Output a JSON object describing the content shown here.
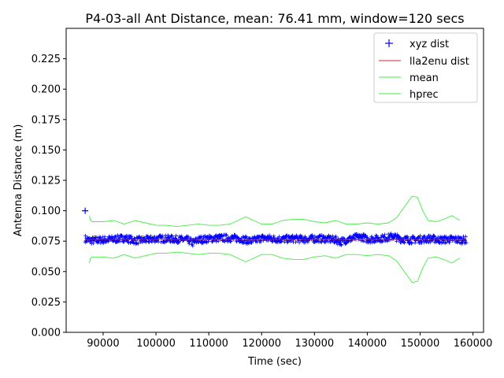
{
  "chart_data": {
    "type": "line",
    "title": "P4-03-all Ant Distance, mean: 76.41 mm, window=120 secs",
    "xlabel": "Time (sec)",
    "ylabel": "Antenna Distance (m)",
    "xlim": [
      83000,
      162000
    ],
    "ylim": [
      0.0,
      0.25
    ],
    "xticks": [
      90000,
      100000,
      110000,
      120000,
      130000,
      140000,
      150000,
      160000
    ],
    "xtick_labels": [
      "90000",
      "100000",
      "110000",
      "120000",
      "130000",
      "140000",
      "150000",
      "160000"
    ],
    "yticks": [
      0.0,
      0.025,
      0.05,
      0.075,
      0.1,
      0.125,
      0.15,
      0.175,
      0.2,
      0.225
    ],
    "ytick_labels": [
      "0.000",
      "0.025",
      "0.050",
      "0.075",
      "0.100",
      "0.125",
      "0.150",
      "0.175",
      "0.200",
      "0.225"
    ],
    "grid": false,
    "legend_position": "top-right",
    "series": [
      {
        "name": "xyz dist",
        "style": "plus-markers",
        "color": "#0000ff",
        "outliers": [
          [
            86600,
            0.1
          ]
        ],
        "x": [
          86600,
          87000,
          88000,
          90000,
          92000,
          94000,
          96000,
          98000,
          100000,
          102000,
          104000,
          106000,
          107000,
          108000,
          110000,
          112000,
          114000,
          116000,
          118000,
          120000,
          122000,
          124000,
          126000,
          128000,
          130000,
          132000,
          134000,
          135000,
          136000,
          138000,
          139000,
          140000,
          142000,
          144000,
          145000,
          146000,
          148000,
          150000,
          152000,
          154000,
          156000,
          158000,
          158700
        ],
        "y": [
          0.077,
          0.076,
          0.0755,
          0.076,
          0.0765,
          0.0775,
          0.0755,
          0.076,
          0.077,
          0.077,
          0.0765,
          0.076,
          0.0735,
          0.076,
          0.077,
          0.0775,
          0.0775,
          0.077,
          0.075,
          0.0775,
          0.077,
          0.0765,
          0.077,
          0.0765,
          0.077,
          0.077,
          0.076,
          0.0745,
          0.076,
          0.078,
          0.0785,
          0.0765,
          0.077,
          0.078,
          0.079,
          0.077,
          0.076,
          0.0765,
          0.077,
          0.076,
          0.0765,
          0.076,
          0.076
        ],
        "spread": 0.003
      },
      {
        "name": "lla2enu dist",
        "style": "line",
        "color": "#d62728",
        "x": [
          86600,
          95000,
          105000,
          115000,
          125000,
          135000,
          145000,
          158700
        ],
        "y": [
          0.0764,
          0.0764,
          0.0764,
          0.0764,
          0.0764,
          0.0764,
          0.0764,
          0.0764
        ]
      },
      {
        "name": "mean",
        "style": "line",
        "color": "#44ee44",
        "x": [
          87400,
          87600,
          88000,
          90000,
          92000,
          94000,
          96000,
          98000,
          100000,
          102000,
          104000,
          106000,
          108000,
          110000,
          112000,
          114000,
          116000,
          117000,
          118000,
          120000,
          122000,
          124000,
          126000,
          128000,
          130000,
          132000,
          134000,
          136000,
          138000,
          140000,
          142000,
          144000,
          145500,
          146500,
          147500,
          148500,
          149500,
          150500,
          151500,
          153000,
          154500,
          156000,
          157500
        ],
        "y": [
          0.096,
          0.092,
          0.091,
          0.091,
          0.092,
          0.089,
          0.092,
          0.09,
          0.088,
          0.088,
          0.087,
          0.088,
          0.089,
          0.088,
          0.088,
          0.089,
          0.093,
          0.095,
          0.093,
          0.089,
          0.089,
          0.092,
          0.093,
          0.093,
          0.091,
          0.09,
          0.092,
          0.089,
          0.089,
          0.09,
          0.089,
          0.09,
          0.094,
          0.1,
          0.106,
          0.112,
          0.111,
          0.1,
          0.092,
          0.091,
          0.093,
          0.096,
          0.092
        ]
      },
      {
        "name": "hprec",
        "style": "line",
        "color": "#44ee44",
        "x": [
          87400,
          87600,
          88000,
          90000,
          92000,
          94000,
          96000,
          98000,
          100000,
          102000,
          104000,
          106000,
          108000,
          110000,
          112000,
          114000,
          116000,
          117000,
          118000,
          120000,
          122000,
          124000,
          126000,
          128000,
          130000,
          132000,
          134000,
          136000,
          138000,
          140000,
          142000,
          144000,
          145500,
          146500,
          147500,
          148500,
          149500,
          150500,
          151500,
          153000,
          154500,
          156000,
          157500
        ],
        "y": [
          0.057,
          0.061,
          0.062,
          0.062,
          0.061,
          0.064,
          0.061,
          0.063,
          0.065,
          0.065,
          0.066,
          0.065,
          0.064,
          0.065,
          0.065,
          0.064,
          0.06,
          0.058,
          0.06,
          0.064,
          0.064,
          0.061,
          0.06,
          0.06,
          0.062,
          0.063,
          0.061,
          0.064,
          0.064,
          0.063,
          0.064,
          0.063,
          0.059,
          0.053,
          0.047,
          0.041,
          0.042,
          0.053,
          0.061,
          0.062,
          0.06,
          0.057,
          0.061
        ]
      }
    ]
  }
}
